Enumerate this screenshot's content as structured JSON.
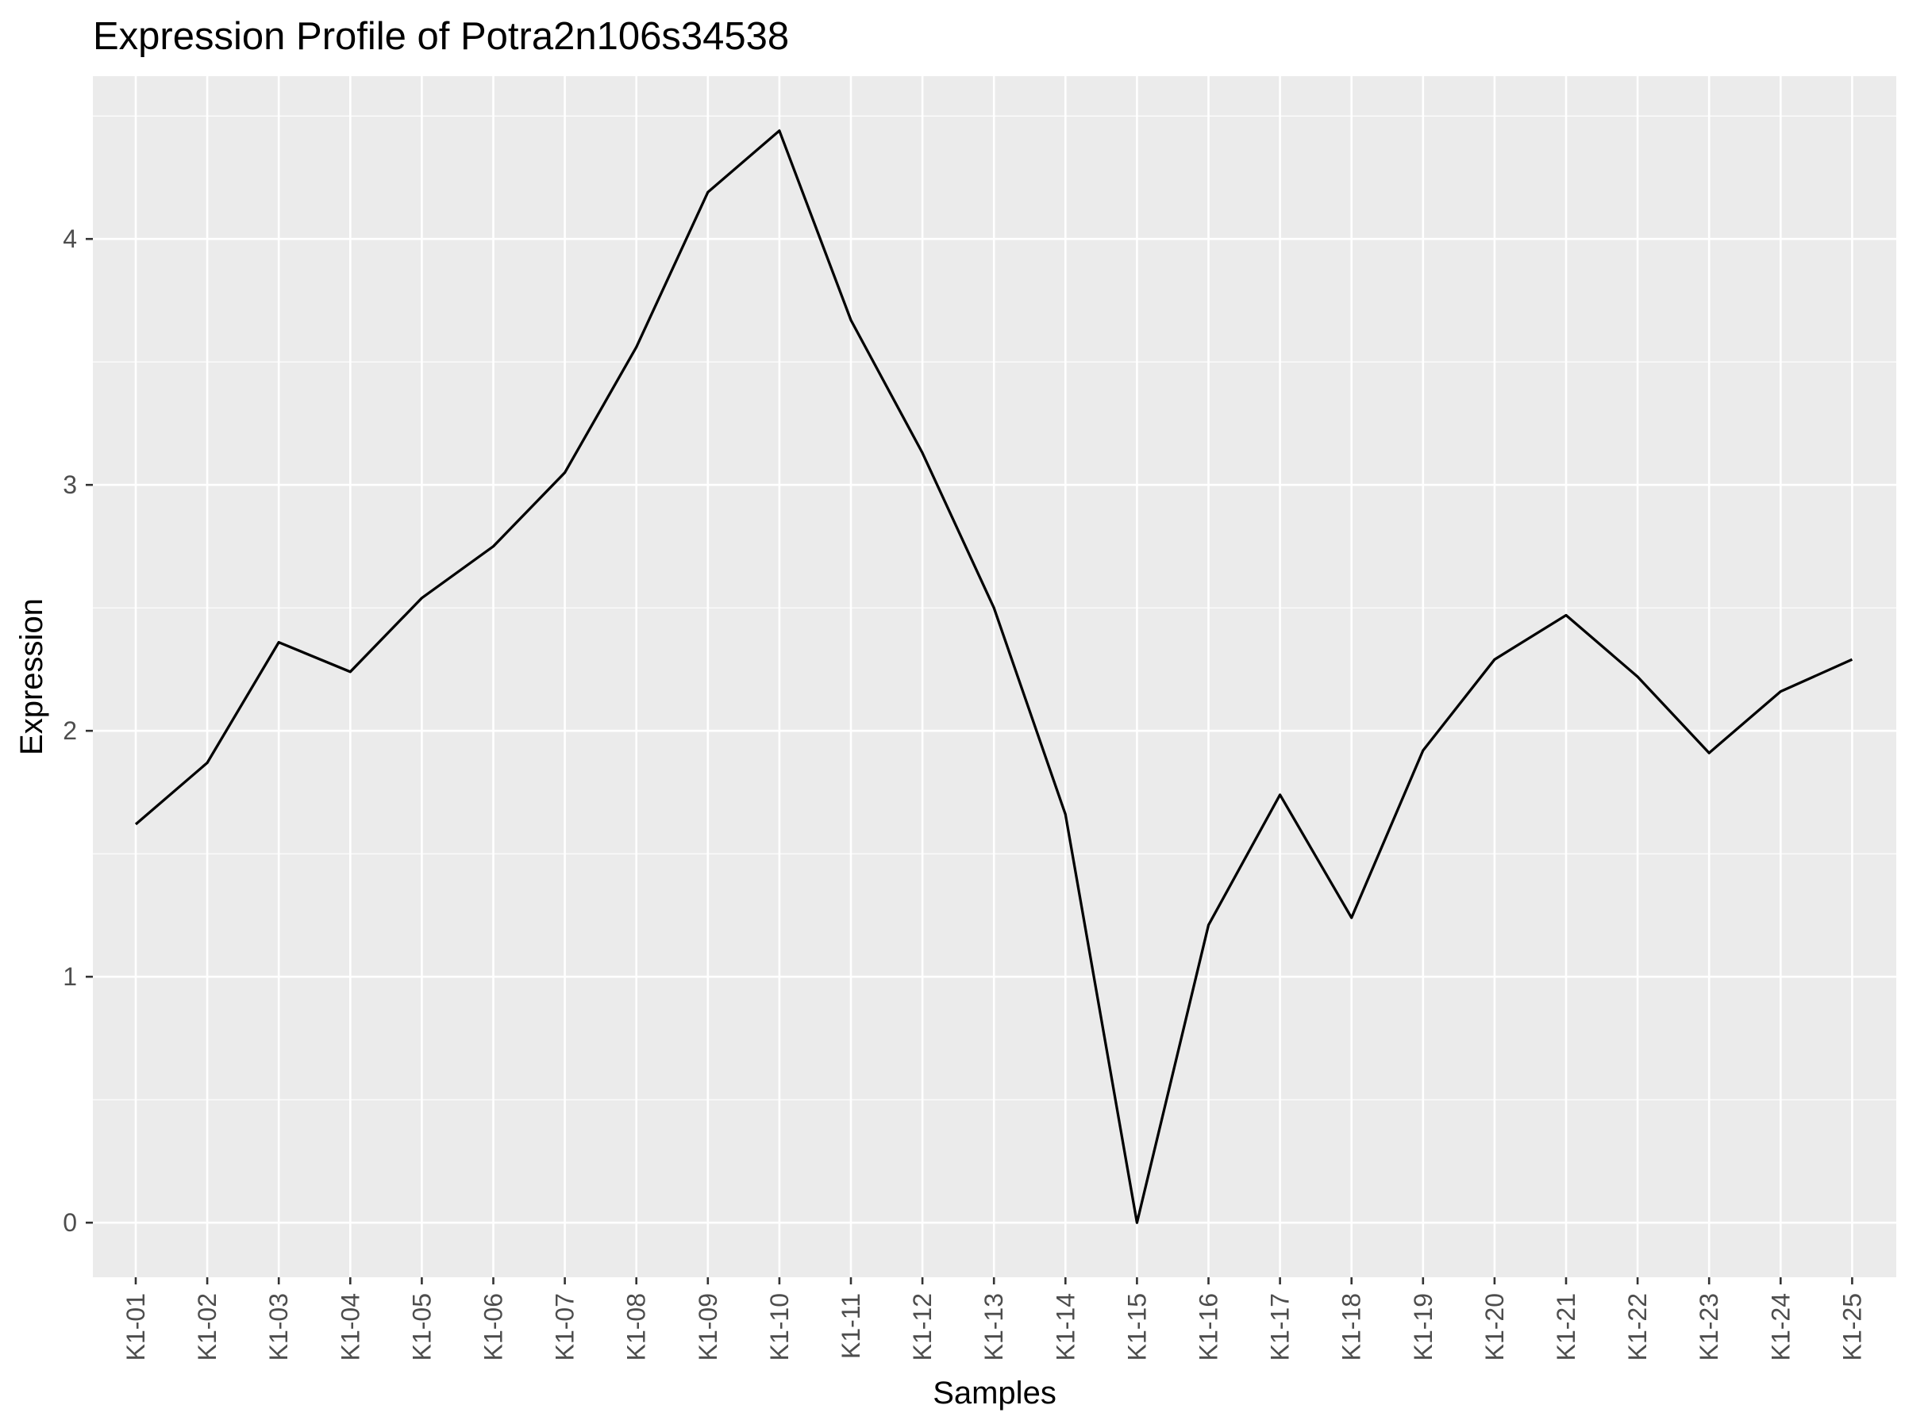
{
  "chart_data": {
    "type": "line",
    "title": "Expression Profile of Potra2n106s34538",
    "xlabel": "Samples",
    "ylabel": "Expression",
    "categories": [
      "K1-01",
      "K1-02",
      "K1-03",
      "K1-04",
      "K1-05",
      "K1-06",
      "K1-07",
      "K1-08",
      "K1-09",
      "K1-10",
      "K1-11",
      "K1-12",
      "K1-13",
      "K1-14",
      "K1-15",
      "K1-16",
      "K1-17",
      "K1-18",
      "K1-19",
      "K1-20",
      "K1-21",
      "K1-22",
      "K1-23",
      "K1-24",
      "K1-25"
    ],
    "series": [
      {
        "values": [
          1.62,
          1.87,
          2.36,
          2.24,
          2.54,
          2.75,
          3.05,
          3.56,
          4.19,
          4.44,
          3.67,
          3.13,
          2.5,
          1.66,
          0.0,
          1.21,
          1.74,
          1.24,
          1.92,
          2.29,
          2.47,
          2.22,
          1.91,
          2.16,
          2.29
        ]
      }
    ],
    "yticks": [
      0,
      1,
      2,
      3,
      4
    ],
    "ylim": [
      -0.222,
      4.662
    ],
    "grid": true,
    "colors": {
      "panel_background": "#ebebeb",
      "grid_line": "#ffffff",
      "series_line": "#000000",
      "tick_text": "#4d4d4d",
      "tick_mark": "#333333"
    }
  }
}
